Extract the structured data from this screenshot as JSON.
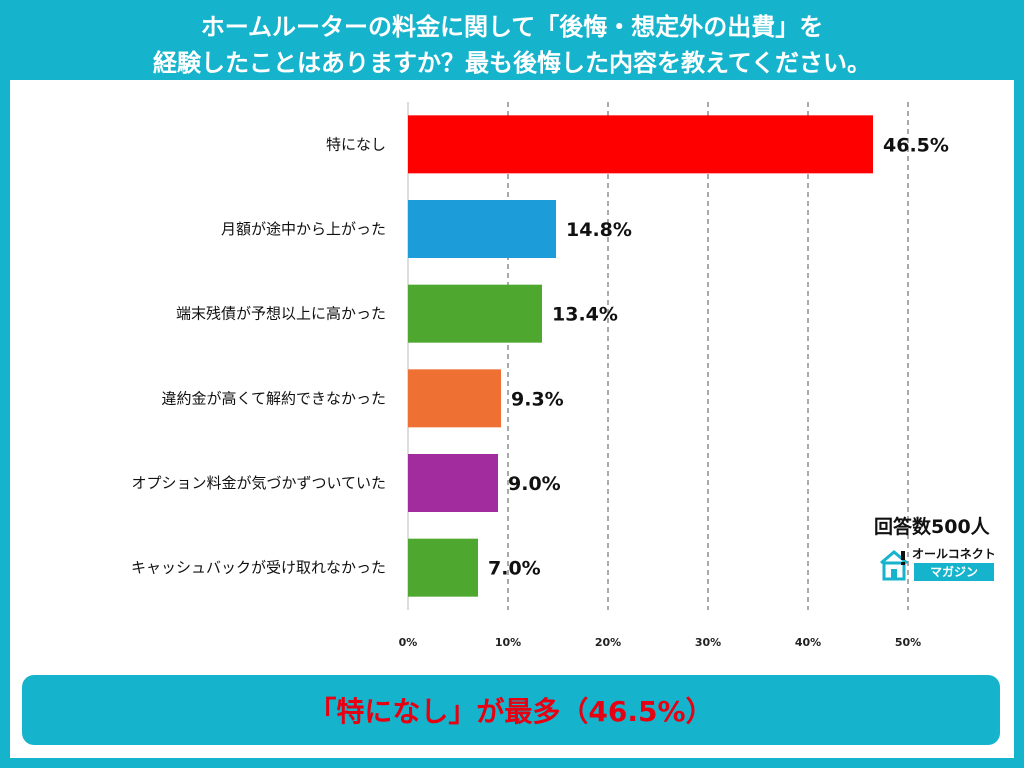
{
  "title": {
    "line1": "ホームルーターの料金に関して「後悔・想定外の出費」を",
    "line2": "経験したことはありますか？最も後悔した内容を教えてください。"
  },
  "respondents": "回答数500人",
  "logo": {
    "name": "オールコネクト",
    "sub": "マガジン",
    "icon": "house-icon"
  },
  "banner": {
    "text": "「特になし」が最多（46.5%）"
  },
  "chart_data": {
    "type": "bar",
    "orientation": "horizontal",
    "categories": [
      "特になし",
      "月額が途中から上がった",
      "端末残債が予想以上に高かった",
      "違約金が高くて解約できなかった",
      "オプション料金が気づかずついていた",
      "キャッシュバックが受け取れなかった"
    ],
    "values": [
      46.5,
      14.8,
      13.4,
      9.3,
      9.0,
      7.0
    ],
    "value_labels": [
      "46.5%",
      "14.8%",
      "13.4%",
      "9.3%",
      "9.0%",
      "7.0%"
    ],
    "colors": [
      "#ff0000",
      "#1c9cd8",
      "#4ea72e",
      "#ee7033",
      "#a22b9e",
      "#4ea72e"
    ],
    "xlim": [
      0,
      50
    ],
    "xticks": [
      0,
      10,
      20,
      30,
      40,
      50
    ],
    "xtick_labels": [
      "0%",
      "10%",
      "20%",
      "30%",
      "40%",
      "50%"
    ],
    "grid": "vertical-dashed"
  }
}
